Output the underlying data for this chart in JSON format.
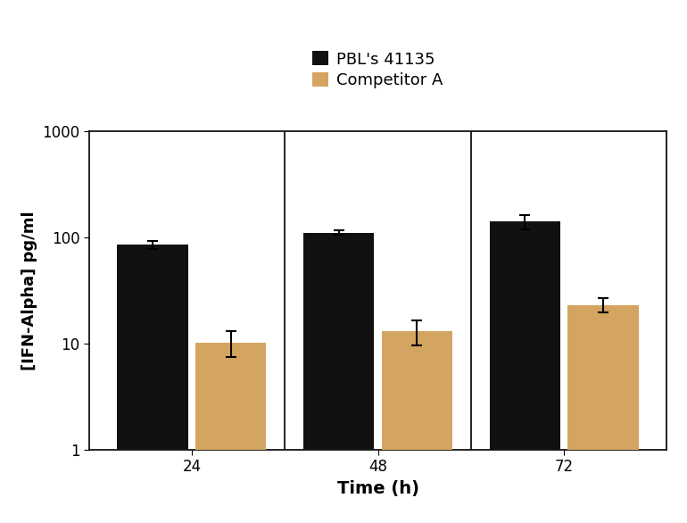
{
  "groups": [
    "24",
    "48",
    "72"
  ],
  "series": [
    {
      "label": "PBL's 41135",
      "color": "#111111",
      "values": [
        85,
        110,
        140
      ],
      "errors": [
        7,
        5,
        22
      ]
    },
    {
      "label": "Competitor A",
      "color": "#D4A560",
      "values": [
        10.2,
        13.0,
        23.0
      ],
      "errors": [
        2.8,
        3.5,
        3.5
      ]
    }
  ],
  "ylabel": "[IFN-Alpha] pg/ml",
  "xlabel": "Time (h)",
  "ylim": [
    1,
    1000
  ],
  "yticks": [
    1,
    10,
    100,
    1000
  ],
  "bar_width": 0.38,
  "background_color": "#ffffff",
  "xlabel_fontsize": 14,
  "ylabel_fontsize": 13,
  "tick_fontsize": 12,
  "legend_fontsize": 13
}
